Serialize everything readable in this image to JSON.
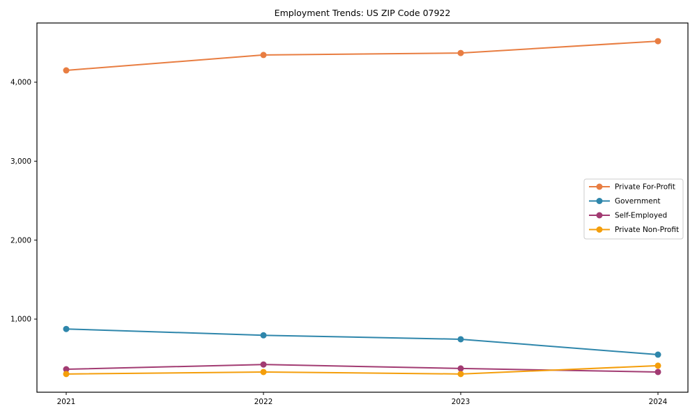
{
  "chart_data": {
    "type": "line",
    "title": "Employment Trends: US ZIP Code 07922",
    "x": [
      "2021",
      "2022",
      "2023",
      "2024"
    ],
    "series": [
      {
        "name": "Private For-Profit",
        "color": "#E87D41",
        "values": [
          4150,
          4345,
          4370,
          4520
        ]
      },
      {
        "name": "Government",
        "color": "#2E86AB",
        "values": [
          875,
          795,
          745,
          550
        ]
      },
      {
        "name": "Self-Employed",
        "color": "#A23B72",
        "values": [
          365,
          425,
          375,
          330
        ]
      },
      {
        "name": "Private Non-Profit",
        "color": "#F49E0B",
        "values": [
          305,
          330,
          305,
          410
        ]
      }
    ],
    "yticks": [
      1000,
      2000,
      3000,
      4000
    ],
    "ytick_labels": [
      "1,000",
      "2,000",
      "3,000",
      "4,000"
    ],
    "ylim": [
      74,
      4750
    ],
    "grid": false,
    "legend_position": "middle-right",
    "background": "#ffffff",
    "axis_color": "#000000",
    "legend_border_color": "#cccccc"
  }
}
